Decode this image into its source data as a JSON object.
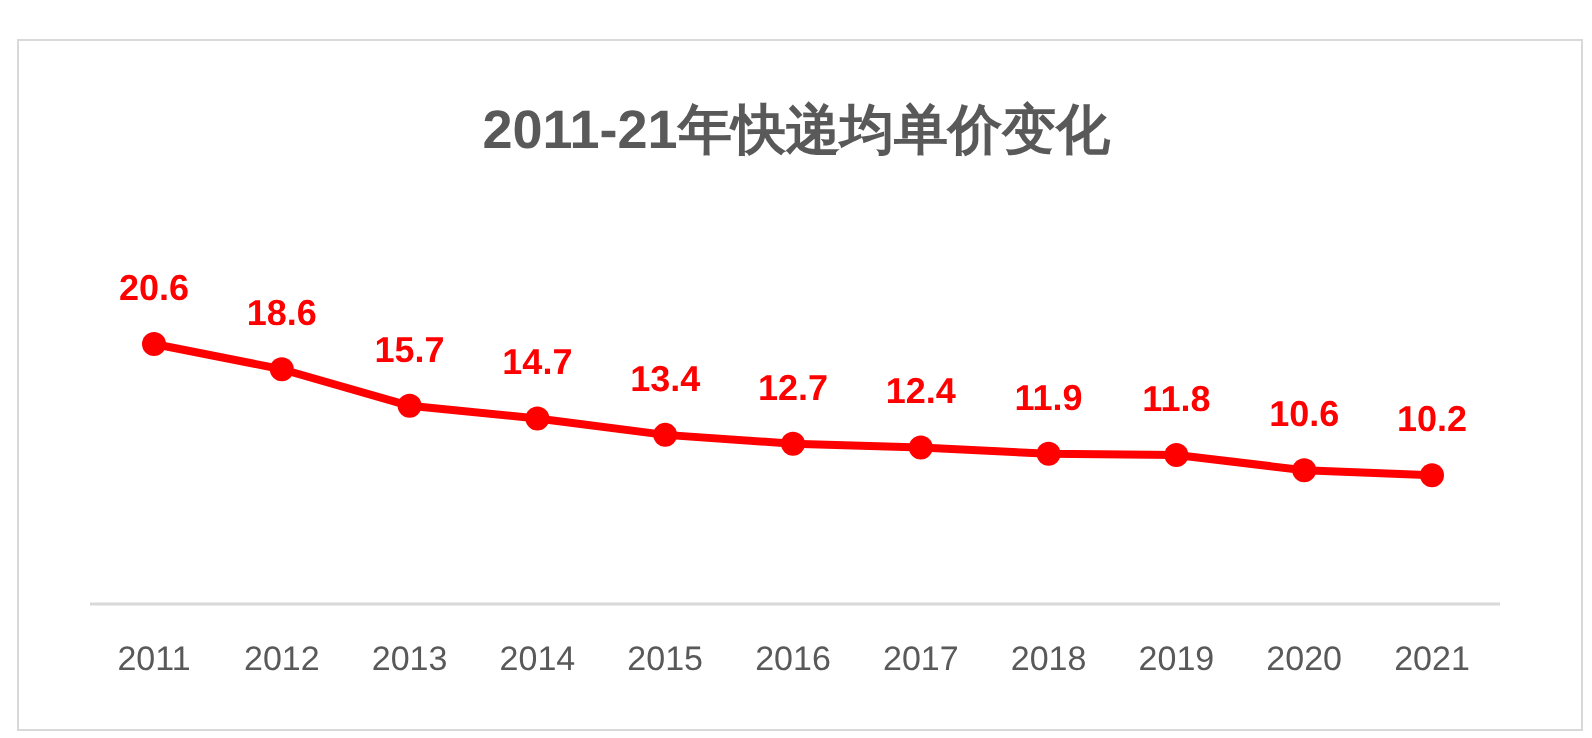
{
  "chart_data": {
    "type": "line",
    "title": "2011-21年快递均单价变化",
    "categories": [
      "2011",
      "2012",
      "2013",
      "2014",
      "2015",
      "2016",
      "2017",
      "2018",
      "2019",
      "2020",
      "2021"
    ],
    "values": [
      20.6,
      18.6,
      15.7,
      14.7,
      13.4,
      12.7,
      12.4,
      11.9,
      11.8,
      10.6,
      10.2
    ],
    "color": "#ff0000",
    "data_labels": true,
    "marker": "circle"
  }
}
